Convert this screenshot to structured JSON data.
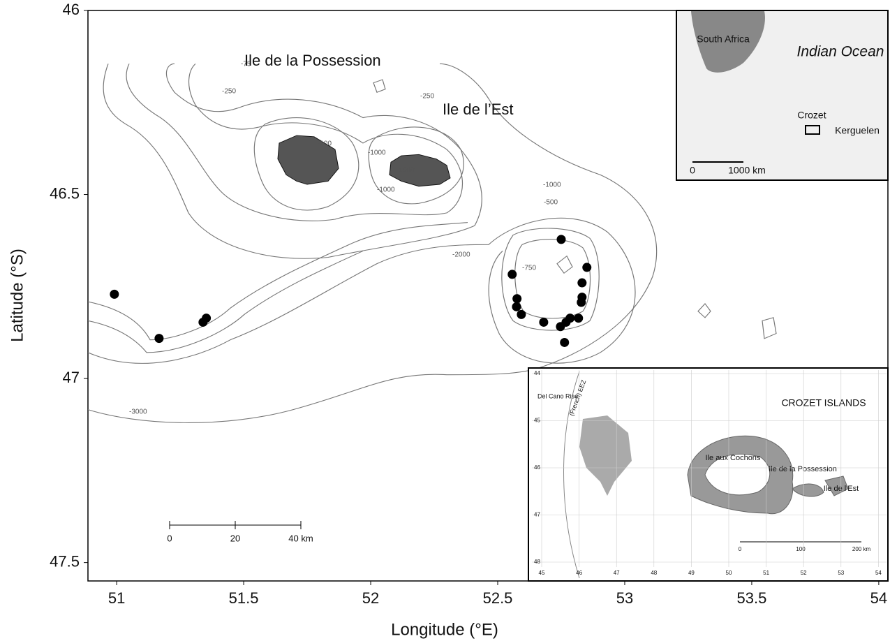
{
  "chart_data": {
    "type": "scatter",
    "x_label": "Longitude (°E)",
    "y_label": "Latitude (°S)",
    "x": [
      50.991,
      51.167,
      51.34,
      51.353,
      52.75,
      52.851,
      52.557,
      52.832,
      52.576,
      52.832,
      52.829,
      52.574,
      52.593,
      52.681,
      52.818,
      52.785,
      52.769,
      52.747,
      52.763
    ],
    "values": [
      46.771,
      46.891,
      46.847,
      46.836,
      46.622,
      46.698,
      46.717,
      46.74,
      46.783,
      46.779,
      46.793,
      46.805,
      46.826,
      46.847,
      46.836,
      46.836,
      46.847,
      46.859,
      46.902
    ],
    "color": "#000000",
    "xlim": [
      50.887,
      54.036
    ],
    "xticks": [
      51,
      51.5,
      52,
      52.5,
      53,
      53.5,
      54
    ],
    "ylim": [
      46,
      47.55
    ],
    "yticks": [
      46,
      46.5,
      47,
      47.5
    ]
  },
  "islands": [
    "Ile de la Possession",
    "Ile de l’Est"
  ],
  "contour_labels": [
    "-75",
    "-250",
    "-250",
    "-100",
    "-1000",
    "-1000",
    "-1000",
    "-1000",
    "-500",
    "-750",
    "-2000",
    "-3000"
  ],
  "scale_bar": [
    "0",
    "20",
    "40 km"
  ],
  "inset_region": {
    "labels": [
      "South Africa",
      "Indian Ocean",
      "Crozet",
      "Kerguelen"
    ],
    "scale_bar": [
      "0",
      "1000 km"
    ]
  },
  "inset_crozet": {
    "title": "CROZET ISLANDS",
    "labels": [
      "Del Cano Rise",
      "(French) EEZ",
      "Ile aux Cochons",
      "Ile de la Possession",
      "Ile de l'Est"
    ],
    "yticks": [
      "44",
      "45",
      "46",
      "47",
      "48"
    ],
    "xticks": [
      "45",
      "46",
      "47",
      "48",
      "49",
      "50",
      "51",
      "52",
      "53",
      "54"
    ],
    "scale_bar": [
      "0",
      "100",
      "200 km"
    ]
  }
}
